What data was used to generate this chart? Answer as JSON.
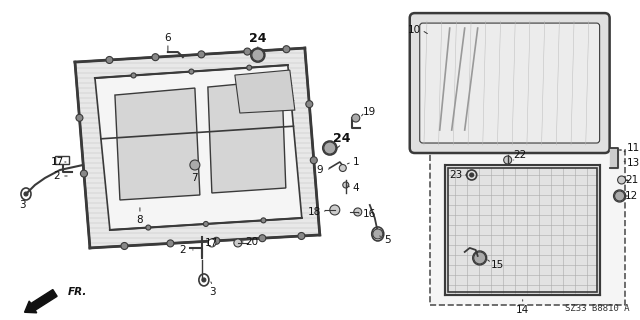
{
  "bg": "#ffffff",
  "diagram_code": "SZ33 B8810 A",
  "fig_w": 6.4,
  "fig_h": 3.2,
  "dpi": 100,
  "frame_color": "#3a3a3a",
  "hatch_color": "#888888",
  "label_color": "#111111"
}
